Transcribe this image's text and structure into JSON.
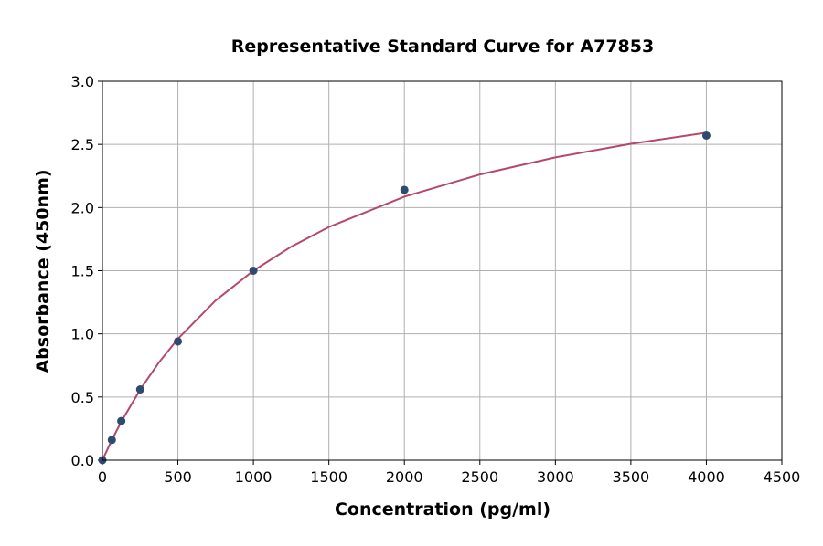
{
  "chart_data": {
    "type": "scatter",
    "title": "Representative Standard Curve for A77853",
    "xlabel": "Concentration (pg/ml)",
    "ylabel": "Absorbance (450nm)",
    "xlim": [
      0,
      4500
    ],
    "ylim": [
      0,
      3.0
    ],
    "grid": true,
    "xticks": [
      "0",
      "500",
      "1000",
      "1500",
      "2000",
      "2500",
      "3000",
      "3500",
      "4000",
      "4500"
    ],
    "yticks": [
      "0.0",
      "0.5",
      "1.0",
      "1.5",
      "2.0",
      "2.5",
      "3.0"
    ],
    "points": [
      {
        "x": 0,
        "y": 0.0
      },
      {
        "x": 62.5,
        "y": 0.16
      },
      {
        "x": 125,
        "y": 0.31
      },
      {
        "x": 250,
        "y": 0.56
      },
      {
        "x": 500,
        "y": 0.94
      },
      {
        "x": 1000,
        "y": 1.5
      },
      {
        "x": 2000,
        "y": 2.14
      },
      {
        "x": 4000,
        "y": 2.57
      }
    ],
    "fit_curve": [
      {
        "x": 0,
        "y": 0
      },
      {
        "x": 62.5,
        "y": 0.159
      },
      {
        "x": 125,
        "y": 0.304
      },
      {
        "x": 250,
        "y": 0.559
      },
      {
        "x": 375,
        "y": 0.775
      },
      {
        "x": 500,
        "y": 0.961
      },
      {
        "x": 750,
        "y": 1.264
      },
      {
        "x": 1000,
        "y": 1.5
      },
      {
        "x": 1250,
        "y": 1.69
      },
      {
        "x": 1500,
        "y": 1.846
      },
      {
        "x": 2000,
        "y": 2.086
      },
      {
        "x": 2500,
        "y": 2.262
      },
      {
        "x": 3000,
        "y": 2.397
      },
      {
        "x": 3500,
        "y": 2.505
      },
      {
        "x": 4000,
        "y": 2.592
      }
    ],
    "colors": {
      "points": "#2e4a6e",
      "curve": "#b5476b",
      "grid": "#b0b0b0"
    }
  }
}
